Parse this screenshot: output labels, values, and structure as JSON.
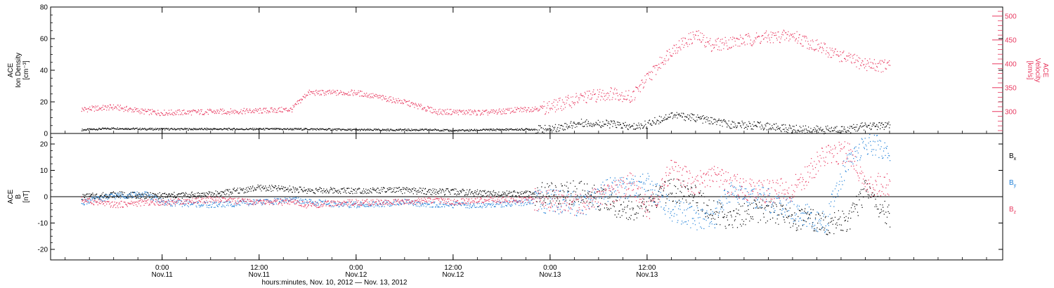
{
  "colors": {
    "black": "#000000",
    "blue": "#1d7fd8",
    "red": "#e8385f"
  },
  "chart_data": [
    {
      "type": "scatter",
      "panel": "top",
      "ylabel_lines": [
        "ACE",
        "Ion Density",
        "[cm⁻³]"
      ],
      "ylim": [
        0,
        80
      ],
      "yticks": [
        0,
        20,
        40,
        60,
        80
      ],
      "right_axis": {
        "ylabel_lines": [
          "ACE",
          "Velocity",
          "[km/s]"
        ],
        "ylim": [
          254,
          519
        ],
        "yticks": [
          300,
          350,
          400,
          450,
          500
        ],
        "color": "#e8385f"
      },
      "x": [
        -10,
        -6,
        -2,
        0,
        6,
        12,
        16,
        18,
        24,
        30,
        34,
        36,
        40,
        48,
        52,
        56,
        58,
        60,
        63,
        66,
        68,
        70,
        74,
        78,
        82,
        85,
        87,
        90
      ],
      "series": [
        {
          "name": "Ion Density",
          "axis": "left",
          "color": "#000000",
          "values": [
            2.5,
            3.5,
            3.0,
            3.0,
            3.0,
            3.0,
            3.0,
            3.0,
            2.5,
            2.5,
            2.5,
            2.0,
            2.5,
            3.0,
            7.0,
            6.0,
            4.0,
            6.0,
            12.0,
            10.0,
            8.0,
            6.0,
            5.0,
            3.0,
            2.5,
            3.0,
            5.0,
            5.0
          ]
        },
        {
          "name": "Velocity",
          "axis": "right",
          "color": "#e8385f",
          "values": [
            305,
            310,
            300,
            298,
            300,
            302,
            305,
            340,
            340,
            320,
            300,
            300,
            298,
            310,
            330,
            340,
            330,
            370,
            430,
            460,
            440,
            445,
            455,
            460,
            430,
            410,
            400,
            395
          ]
        }
      ]
    },
    {
      "type": "scatter",
      "panel": "bottom",
      "ylabel_lines": [
        "ACE",
        "B",
        "[nT]"
      ],
      "ylim": [
        -24,
        24
      ],
      "yticks": [
        -20,
        -10,
        0,
        10,
        20
      ],
      "zero_line": true,
      "x": [
        -10,
        -6,
        -2,
        0,
        6,
        12,
        16,
        18,
        24,
        30,
        34,
        36,
        40,
        48,
        52,
        56,
        58,
        60,
        63,
        66,
        68,
        70,
        74,
        78,
        82,
        85,
        87,
        90
      ],
      "series": [
        {
          "name": "Bx",
          "color": "#000000",
          "values": [
            0,
            1.0,
            0.5,
            0.5,
            1.0,
            3.5,
            3.0,
            2.5,
            2.5,
            2.5,
            2.0,
            2.0,
            1.5,
            1.0,
            2.0,
            -3.0,
            -5.0,
            -2.0,
            3.0,
            0.0,
            -5.0,
            -8.0,
            -5.0,
            -8.0,
            -10.0,
            -9.0,
            3.0,
            -8.0
          ]
        },
        {
          "name": "By",
          "color": "#1d7fd8",
          "values": [
            -2.0,
            0.5,
            1.0,
            -2.0,
            -3.0,
            -2.0,
            -1.0,
            -2.0,
            -3.0,
            -2.0,
            -3.0,
            -3.0,
            -3.0,
            -1.5,
            -3.0,
            4.0,
            3.0,
            5.0,
            -5.0,
            -8.0,
            -10.0,
            2.0,
            0.0,
            -5.0,
            -10.0,
            16.0,
            20.0,
            18.0
          ]
        },
        {
          "name": "Bz",
          "color": "#e8385f",
          "values": [
            -1.0,
            -3.0,
            -2.0,
            -2.0,
            -1.0,
            -2.0,
            -2.0,
            -3.0,
            -2.0,
            -2.0,
            -1.0,
            -2.0,
            -1.0,
            -1.0,
            -3.0,
            2.0,
            5.0,
            -5.0,
            10.0,
            5.0,
            8.0,
            5.0,
            2.0,
            3.0,
            16.0,
            17.0,
            4.0,
            5.0
          ]
        }
      ],
      "legend": [
        {
          "base": "B",
          "sub": "x",
          "color": "#000000"
        },
        {
          "base": "B",
          "sub": "y",
          "color": "#1d7fd8"
        },
        {
          "base": "B",
          "sub": "z",
          "color": "#e8385f"
        }
      ]
    }
  ],
  "x_axis": {
    "xlim": [
      -13.8,
      104.0
    ],
    "ticks": [
      {
        "hour": 0,
        "time": "0:00",
        "date": "Nov.11"
      },
      {
        "hour": 12,
        "time": "12:00",
        "date": "Nov.11"
      },
      {
        "hour": 24,
        "time": "0:00",
        "date": "Nov.12"
      },
      {
        "hour": 36,
        "time": "12:00",
        "date": "Nov.12"
      },
      {
        "hour": 48,
        "time": "0:00",
        "date": "Nov.13"
      },
      {
        "hour": 60,
        "time": "12:00",
        "date": "Nov.13"
      }
    ],
    "title": "hours:minutes, Nov. 10, 2012 — Nov. 13, 2012"
  }
}
